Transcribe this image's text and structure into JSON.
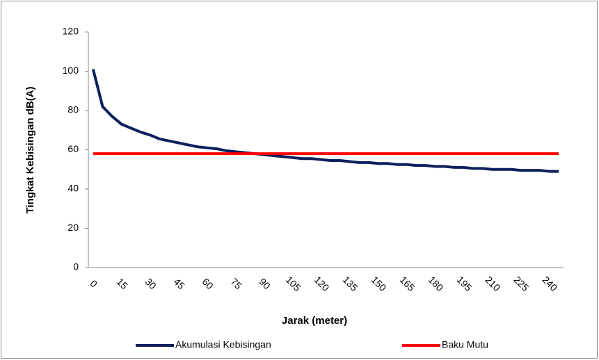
{
  "chart_data": {
    "type": "line",
    "x_label": "Jarak (meter)",
    "y_label": "Tingkat  Kebisingan  dB(A)",
    "categories": [
      0,
      null,
      null,
      15,
      null,
      null,
      30,
      null,
      null,
      45,
      null,
      null,
      60,
      null,
      null,
      75,
      null,
      null,
      90,
      null,
      null,
      105,
      null,
      null,
      120,
      null,
      null,
      135,
      null,
      null,
      150,
      null,
      null,
      165,
      null,
      null,
      180,
      null,
      null,
      195,
      null,
      null,
      210,
      null,
      null,
      225,
      null,
      null,
      240,
      null
    ],
    "series": [
      {
        "name": "Akumulasi Kebisingan",
        "color": "#0d1f5c",
        "values": [
          101,
          82,
          77,
          73,
          71,
          69,
          67.5,
          65.5,
          64.5,
          63.5,
          62.5,
          61.5,
          61,
          60.5,
          59.5,
          59,
          58.5,
          58,
          57.5,
          57,
          56.5,
          56,
          55.5,
          55.5,
          55,
          54.5,
          54.5,
          54,
          53.5,
          53.5,
          53,
          53,
          52.5,
          52.5,
          52,
          52,
          51.5,
          51.5,
          51,
          51,
          50.5,
          50.5,
          50,
          50,
          50,
          49.5,
          49.5,
          49.5,
          49,
          49
        ]
      },
      {
        "name": "Baku Mutu",
        "color": "#ff0000",
        "values": [
          58,
          58,
          58,
          58,
          58,
          58,
          58,
          58,
          58,
          58,
          58,
          58,
          58,
          58,
          58,
          58,
          58,
          58,
          58,
          58,
          58,
          58,
          58,
          58,
          58,
          58,
          58,
          58,
          58,
          58,
          58,
          58,
          58,
          58,
          58,
          58,
          58,
          58,
          58,
          58,
          58,
          58,
          58,
          58,
          58,
          58,
          58,
          58,
          58,
          58
        ]
      }
    ],
    "ylim": [
      0,
      120
    ],
    "yticks": [
      0,
      20,
      40,
      60,
      80,
      100,
      120
    ],
    "grid": false,
    "legend": "bottom"
  }
}
